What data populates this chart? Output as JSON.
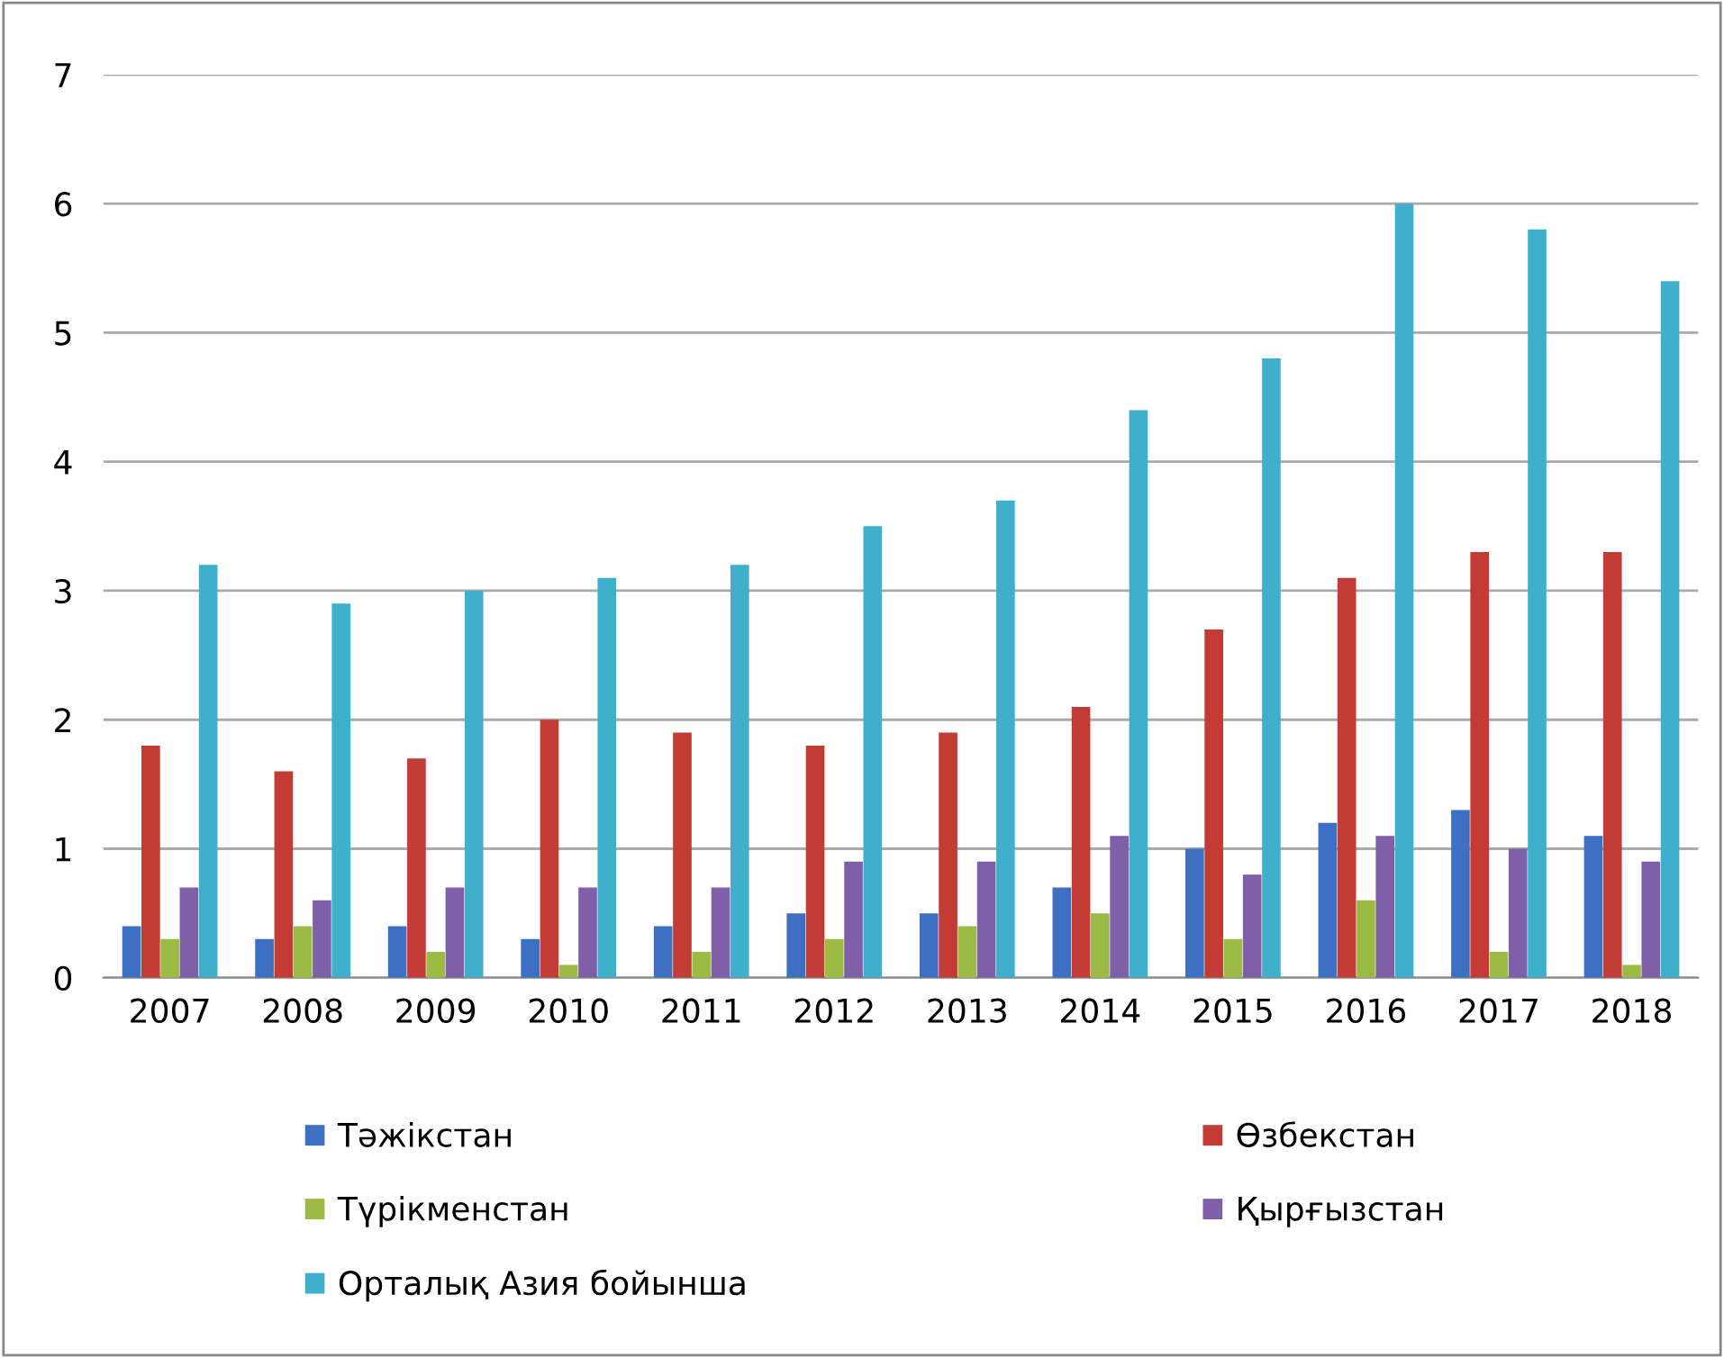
{
  "chart_data": {
    "type": "bar",
    "categories": [
      "2007",
      "2008",
      "2009",
      "2010",
      "2011",
      "2012",
      "2013",
      "2014",
      "2015",
      "2016",
      "2017",
      "2018"
    ],
    "series": [
      {
        "name": "Тәжікстан",
        "color": "#3d6fc2",
        "values": [
          0.4,
          0.3,
          0.4,
          0.3,
          0.4,
          0.5,
          0.5,
          0.7,
          1.0,
          1.2,
          1.3,
          1.1
        ]
      },
      {
        "name": "Өзбекстан",
        "color": "#c23b35",
        "values": [
          1.8,
          1.6,
          1.7,
          2.0,
          1.9,
          1.8,
          1.9,
          2.1,
          2.7,
          3.1,
          3.3,
          3.3
        ]
      },
      {
        "name": "Түрікменстан",
        "color": "#9bbb45",
        "values": [
          0.3,
          0.4,
          0.2,
          0.1,
          0.2,
          0.3,
          0.4,
          0.5,
          0.3,
          0.6,
          0.2,
          0.1
        ]
      },
      {
        "name": "Қырғызстан",
        "color": "#7f5fa8",
        "values": [
          0.7,
          0.6,
          0.7,
          0.7,
          0.7,
          0.9,
          0.9,
          1.1,
          0.8,
          1.1,
          1.0,
          0.9
        ]
      },
      {
        "name": "Орталық Азия бойынша",
        "color": "#3fb0cc",
        "values": [
          3.2,
          2.9,
          3.0,
          3.1,
          3.2,
          3.5,
          3.7,
          4.4,
          4.8,
          6.0,
          5.8,
          5.4
        ]
      }
    ],
    "ylim": [
      0,
      7
    ],
    "yticks": [
      0,
      1,
      2,
      3,
      4,
      5,
      6,
      7
    ],
    "grid": "y",
    "legend": "bottom"
  }
}
